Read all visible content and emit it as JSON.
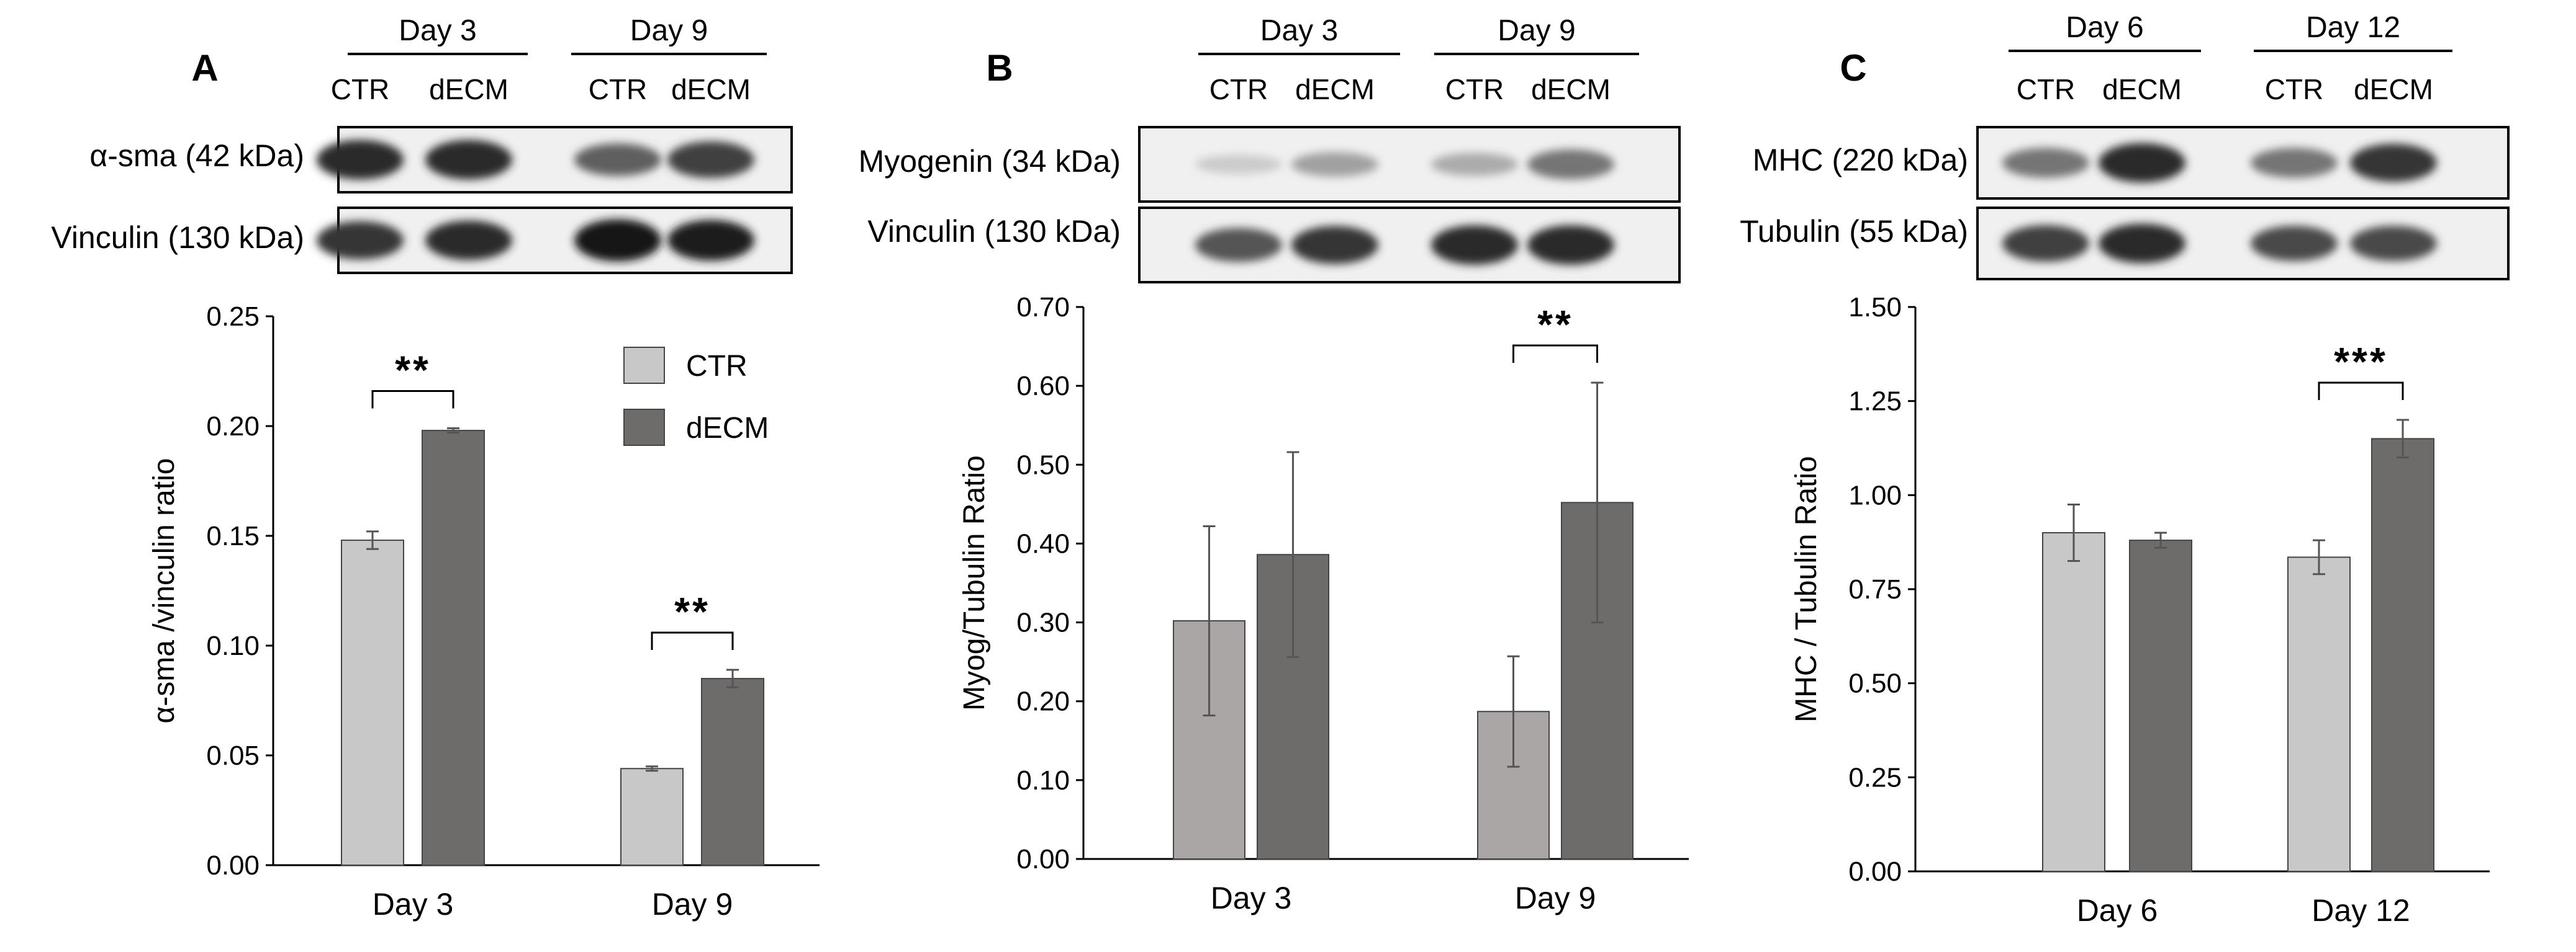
{
  "colors": {
    "ctr": "#c8c8c8",
    "decm": "#6e6b6b",
    "ctr_b": "#aaa6a6",
    "stroke": "#444444",
    "band": "#1b1b1b"
  },
  "panels": [
    {
      "letter": "A",
      "headers": [
        "Day 3",
        "Day 9"
      ],
      "lanes": [
        "CTR",
        "dECM",
        "CTR",
        "dECM"
      ],
      "blots": [
        {
          "label": "α-sma (42 kDa)",
          "bands": [
            0.9,
            0.9,
            0.65,
            0.8
          ]
        },
        {
          "label": "Vinculin (130 kDa)",
          "bands": [
            0.85,
            0.9,
            1.0,
            0.95
          ]
        }
      ],
      "legend": [
        "CTR",
        "dECM"
      ]
    },
    {
      "letter": "B",
      "headers": [
        "Day 3",
        "Day 9"
      ],
      "lanes": [
        "CTR",
        "dECM",
        "CTR",
        "dECM"
      ],
      "blots": [
        {
          "label": "Myogenin (34 kDa)",
          "bands": [
            0.15,
            0.35,
            0.3,
            0.55
          ]
        },
        {
          "label": "Vinculin (130 kDa)",
          "bands": [
            0.7,
            0.85,
            0.9,
            0.9
          ]
        }
      ],
      "legend": []
    },
    {
      "letter": "C",
      "headers": [
        "Day 6",
        "Day 12"
      ],
      "lanes": [
        "CTR",
        "dECM",
        "CTR",
        "dECM"
      ],
      "blots": [
        {
          "label": "MHC (220 kDa)",
          "bands": [
            0.55,
            0.9,
            0.55,
            0.85
          ]
        },
        {
          "label": "Tubulin (55 kDa)",
          "bands": [
            0.8,
            0.9,
            0.75,
            0.75
          ]
        }
      ],
      "legend": []
    }
  ],
  "chart_data": [
    {
      "type": "bar",
      "categories": [
        "Day 3",
        "Day 9"
      ],
      "series": [
        {
          "name": "CTR",
          "values": [
            0.148,
            0.044
          ],
          "errors": [
            0.004,
            0.001
          ]
        },
        {
          "name": "dECM",
          "values": [
            0.198,
            0.085
          ],
          "errors": [
            0.001,
            0.004
          ]
        }
      ],
      "ylabel": "α-sma /vinculin ratio",
      "ylim": [
        0,
        0.25
      ],
      "yticks": [
        "0.00",
        "0.05",
        "0.10",
        "0.15",
        "0.20",
        "0.25"
      ],
      "significance": [
        {
          "category": "Day 3",
          "label": "**"
        },
        {
          "category": "Day 9",
          "label": "**"
        }
      ],
      "legend_position": "top-right",
      "grid": false
    },
    {
      "type": "bar",
      "categories": [
        "Day 3",
        "Day 9"
      ],
      "series": [
        {
          "name": "CTR",
          "values": [
            0.302,
            0.187
          ],
          "errors": [
            0.12,
            0.07
          ]
        },
        {
          "name": "dECM",
          "values": [
            0.386,
            0.452
          ],
          "errors": [
            0.13,
            0.152
          ]
        }
      ],
      "ylabel": "Myog/Tubulin Ratio",
      "ylim": [
        0,
        0.7
      ],
      "yticks": [
        "0.00",
        "0.10",
        "0.20",
        "0.30",
        "0.40",
        "0.50",
        "0.60",
        "0.70"
      ],
      "significance": [
        {
          "category": "Day 9",
          "label": "**"
        }
      ],
      "grid": false
    },
    {
      "type": "bar",
      "categories": [
        "Day 6",
        "Day 12"
      ],
      "series": [
        {
          "name": "CTR",
          "values": [
            0.9,
            0.835
          ],
          "errors": [
            0.075,
            0.045
          ]
        },
        {
          "name": "dECM",
          "values": [
            0.88,
            1.15
          ],
          "errors": [
            0.02,
            0.05
          ]
        }
      ],
      "ylabel": "MHC / Tubulin Ratio",
      "ylim": [
        0,
        1.5
      ],
      "yticks": [
        "0.00",
        "0.25",
        "0.50",
        "0.75",
        "1.00",
        "1.25",
        "1.50"
      ],
      "significance": [
        {
          "category": "Day 12",
          "label": "***"
        }
      ],
      "grid": false
    }
  ]
}
